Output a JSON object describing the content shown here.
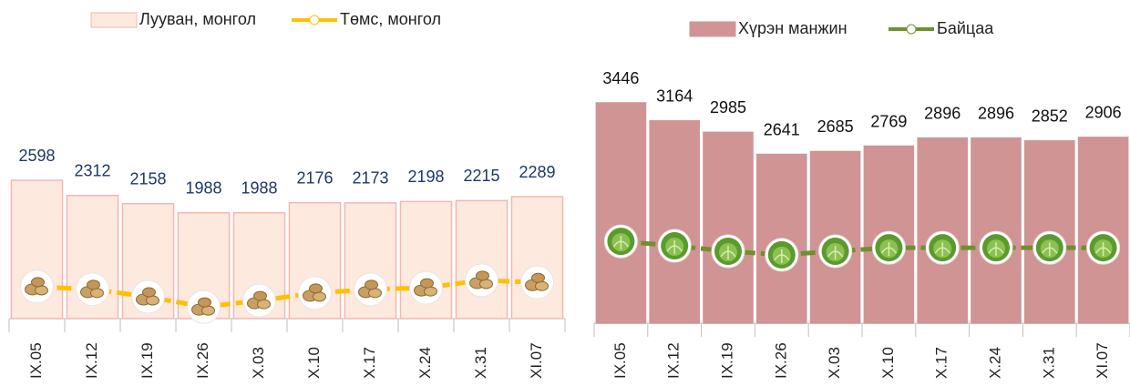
{
  "chart_data": [
    {
      "type": "bar-line",
      "categories": [
        "IX.05",
        "IX.12",
        "IX.19",
        "IX.26",
        "X.03",
        "X.10",
        "X.17",
        "X.24",
        "X.31",
        "XI.07"
      ],
      "series": [
        {
          "name": "Лууван, монгол",
          "kind": "bar",
          "color": "#fde9de",
          "edge": "#f2b8b0",
          "label_color": "#1f3864",
          "values": [
            2598,
            2312,
            2158,
            1988,
            1988,
            2176,
            2173,
            2198,
            2215,
            2289
          ]
        },
        {
          "name": "Төмс, монгол",
          "kind": "line",
          "color": "#ffc000",
          "icon": "potato",
          "values": [
            600,
            550,
            410,
            220,
            340,
            480,
            550,
            580,
            720,
            680
          ]
        }
      ]
    },
    {
      "type": "bar-line",
      "categories": [
        "IX.05",
        "IX.12",
        "IX.19",
        "IX.26",
        "X.03",
        "X.10",
        "X.17",
        "X.24",
        "X.31",
        "XI.07"
      ],
      "series": [
        {
          "name": "Хүрэн манжин",
          "kind": "bar",
          "color": "#d09494",
          "edge": "#d09494",
          "label_color": "#111111",
          "values": [
            3446,
            3164,
            2985,
            2641,
            2685,
            2769,
            2896,
            2896,
            2852,
            2906
          ]
        },
        {
          "name": "Байцаа",
          "kind": "line",
          "color": "#70902e",
          "icon": "cabbage",
          "values": [
            1280,
            1210,
            1125,
            1070,
            1125,
            1180,
            1180,
            1180,
            1180,
            1180
          ]
        }
      ]
    }
  ]
}
